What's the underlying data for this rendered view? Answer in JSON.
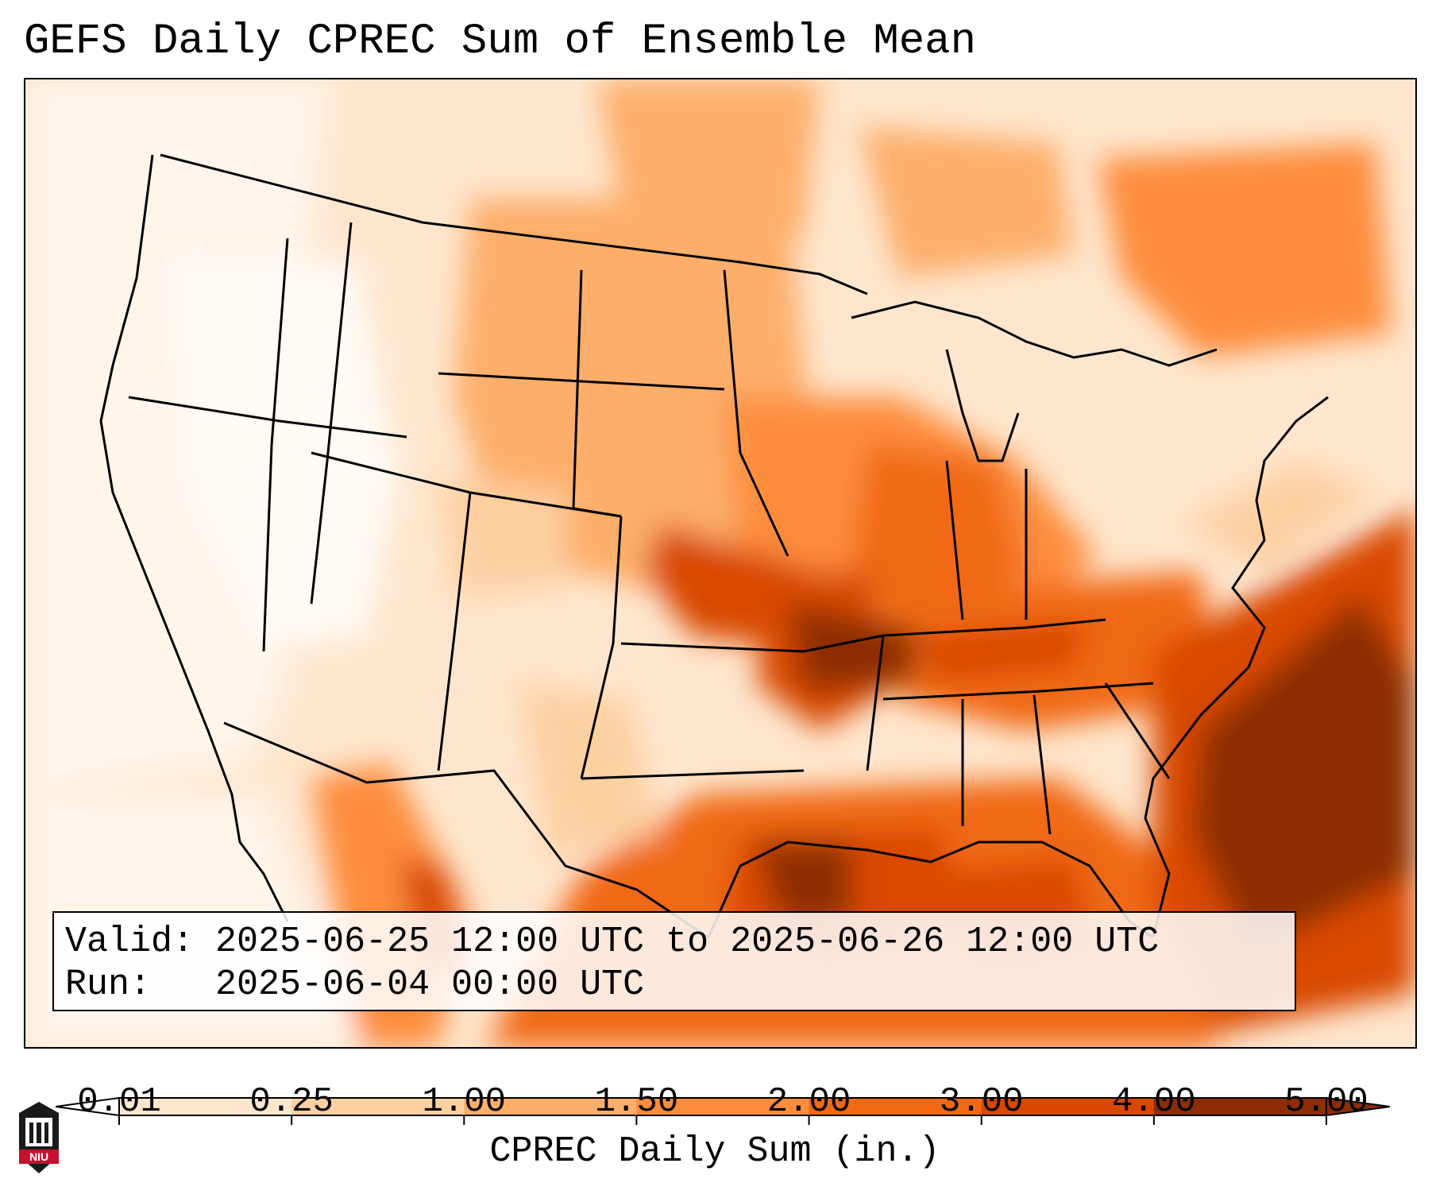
{
  "title": "GEFS Daily CPREC Sum of Ensemble Mean",
  "info": {
    "valid_label": "Valid:",
    "valid_value": "2025-06-25 12:00 UTC to 2025-06-26 12:00 UTC",
    "run_label": "Run:",
    "run_value": "2025-06-04 00:00 UTC"
  },
  "colorbar": {
    "label": "CPREC Daily Sum (in.)",
    "ticks": [
      "0.01",
      "0.25",
      "1.00",
      "1.50",
      "2.00",
      "3.00",
      "4.00",
      "5.00"
    ],
    "colors": [
      "#fff5eb",
      "#fee6ce",
      "#fdd0a2",
      "#fdae6b",
      "#fd8d3c",
      "#f16913",
      "#d94801",
      "#8c2d04"
    ],
    "under_color": "#ffffff",
    "over_color": "#8c2d04"
  },
  "logo": {
    "text": "NIU"
  },
  "map": {
    "region": "Contiguous United States",
    "projection": "Lambert Conformal"
  }
}
